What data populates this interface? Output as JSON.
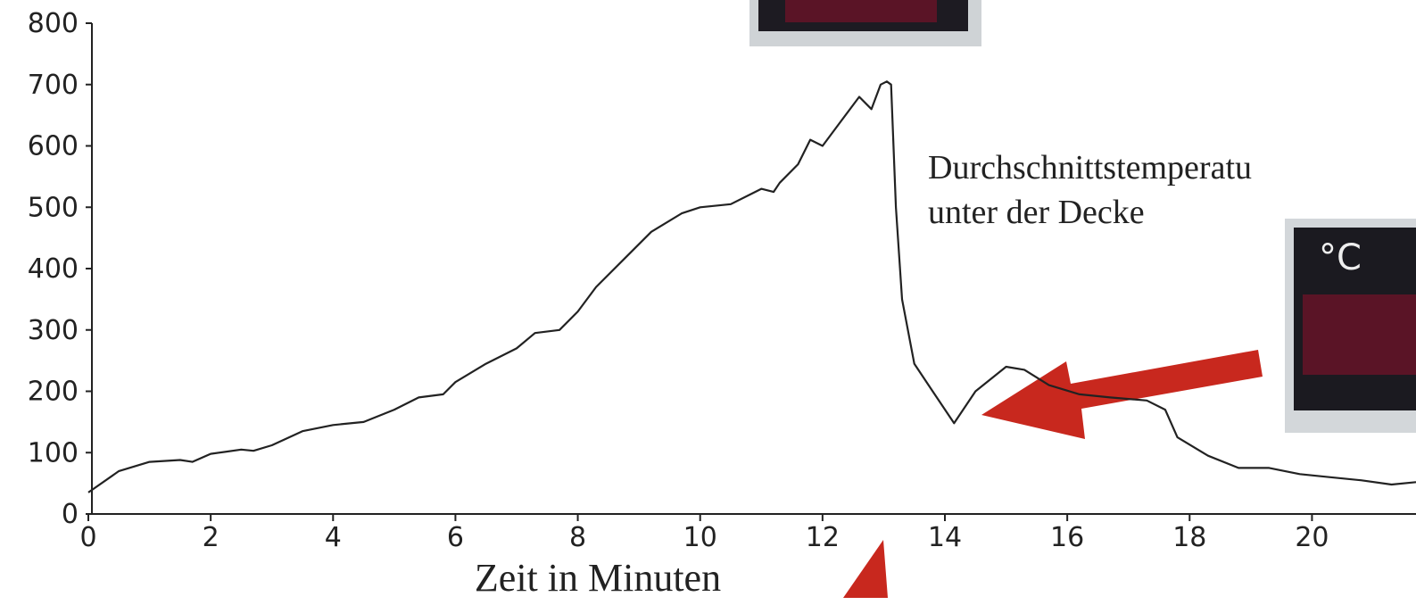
{
  "chart_data": {
    "type": "line",
    "x_label": "Zeit in Minuten",
    "annotations": [
      "Durchschnittstemperatu",
      "unter der Decke"
    ],
    "x": [
      0,
      0.5,
      1,
      1.5,
      1.7,
      2,
      2.5,
      2.7,
      3,
      3.5,
      4,
      4.5,
      5,
      5.4,
      5.8,
      6,
      6.5,
      7,
      7.3,
      7.7,
      8,
      8.3,
      8.8,
      9.2,
      9.7,
      10,
      10.5,
      10.8,
      11,
      11.2,
      11.3,
      11.6,
      11.8,
      12,
      12.3,
      12.6,
      12.8,
      12.95,
      13.05,
      13.12,
      13.2,
      13.3,
      13.5,
      13.8,
      14.15,
      14.5,
      15.0,
      15.3,
      15.7,
      16.2,
      16.7,
      17.3,
      17.6,
      17.8,
      18.3,
      18.8,
      19.3,
      19.8,
      20.3,
      20.8,
      21.3,
      21.7
    ],
    "values": [
      35,
      70,
      85,
      88,
      85,
      98,
      105,
      103,
      112,
      135,
      145,
      150,
      170,
      190,
      195,
      215,
      245,
      270,
      295,
      300,
      330,
      370,
      420,
      460,
      490,
      500,
      505,
      520,
      530,
      525,
      540,
      570,
      610,
      600,
      640,
      680,
      660,
      700,
      705,
      700,
      500,
      350,
      245,
      200,
      148,
      200,
      240,
      235,
      210,
      195,
      190,
      185,
      170,
      125,
      95,
      75,
      75,
      65,
      60,
      55,
      48,
      52
    ],
    "color": "#222222",
    "xlim": [
      0,
      21.7
    ],
    "xticks": [
      0,
      2,
      4,
      6,
      8,
      10,
      12,
      14,
      16,
      18,
      20
    ],
    "ylim": [
      0,
      800
    ],
    "yticks": [
      0,
      100,
      200,
      300,
      400,
      500,
      600,
      700,
      800
    ]
  }
}
